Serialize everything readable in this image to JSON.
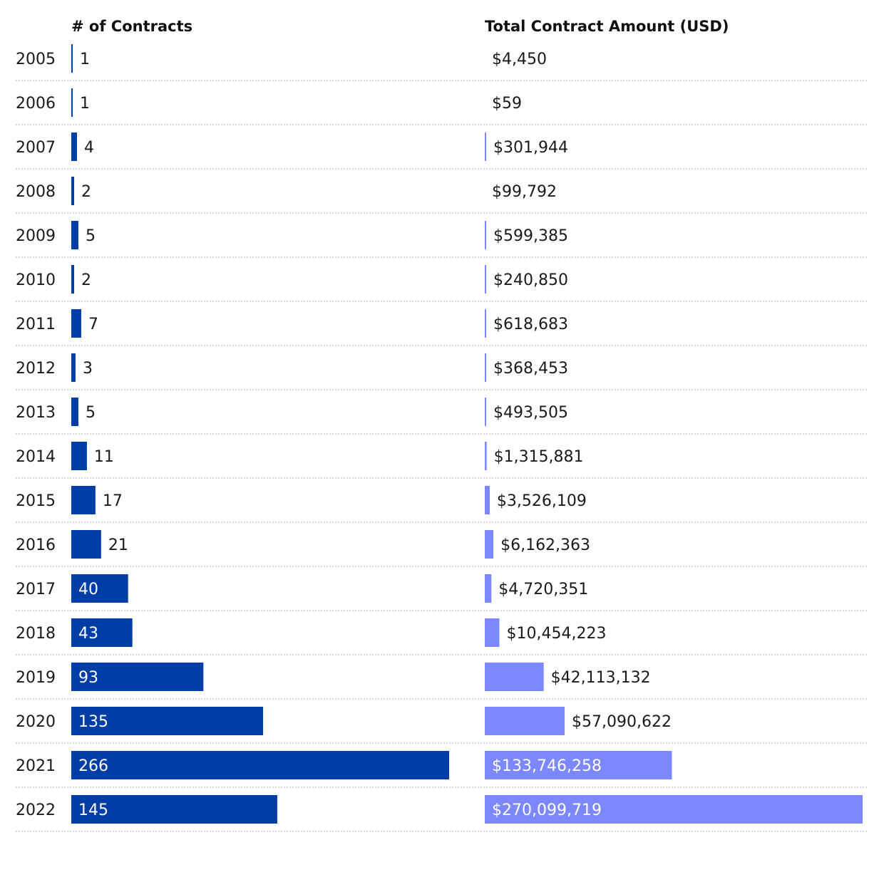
{
  "chart_data": [
    {
      "type": "bar",
      "orientation": "horizontal",
      "title": "# of Contracts",
      "categories": [
        "2005",
        "2006",
        "2007",
        "2008",
        "2009",
        "2010",
        "2011",
        "2012",
        "2013",
        "2014",
        "2015",
        "2016",
        "2017",
        "2018",
        "2019",
        "2020",
        "2021",
        "2022"
      ],
      "values": [
        1,
        1,
        4,
        2,
        5,
        2,
        7,
        3,
        5,
        11,
        17,
        21,
        40,
        43,
        93,
        135,
        266,
        145
      ],
      "labels": [
        "1",
        "1",
        "4",
        "2",
        "5",
        "2",
        "7",
        "3",
        "5",
        "11",
        "17",
        "21",
        "40",
        "43",
        "93",
        "135",
        "266",
        "145"
      ],
      "color": "#003DA5",
      "xlim": [
        0,
        266
      ],
      "grid": false,
      "legend": "none"
    },
    {
      "type": "bar",
      "orientation": "horizontal",
      "title": "Total Contract Amount (USD)",
      "categories": [
        "2005",
        "2006",
        "2007",
        "2008",
        "2009",
        "2010",
        "2011",
        "2012",
        "2013",
        "2014",
        "2015",
        "2016",
        "2017",
        "2018",
        "2019",
        "2020",
        "2021",
        "2022"
      ],
      "values": [
        4450,
        59,
        301944,
        99792,
        599385,
        240850,
        618683,
        368453,
        493505,
        1315881,
        3526109,
        6162363,
        4720351,
        10454223,
        42113132,
        57090622,
        133746258,
        270099719
      ],
      "labels": [
        "$4,450",
        "$59",
        "$301,944",
        "$99,792",
        "$599,385",
        "$240,850",
        "$618,683",
        "$368,453",
        "$493,505",
        "$1,315,881",
        "$3,526,109",
        "$6,162,363",
        "$4,720,351",
        "$10,454,223",
        "$42,113,132",
        "$57,090,622",
        "$133,746,258",
        "$270,099,719"
      ],
      "color": "#7B88FF",
      "xlim": [
        0,
        270099719
      ],
      "grid": false,
      "legend": "none"
    }
  ]
}
